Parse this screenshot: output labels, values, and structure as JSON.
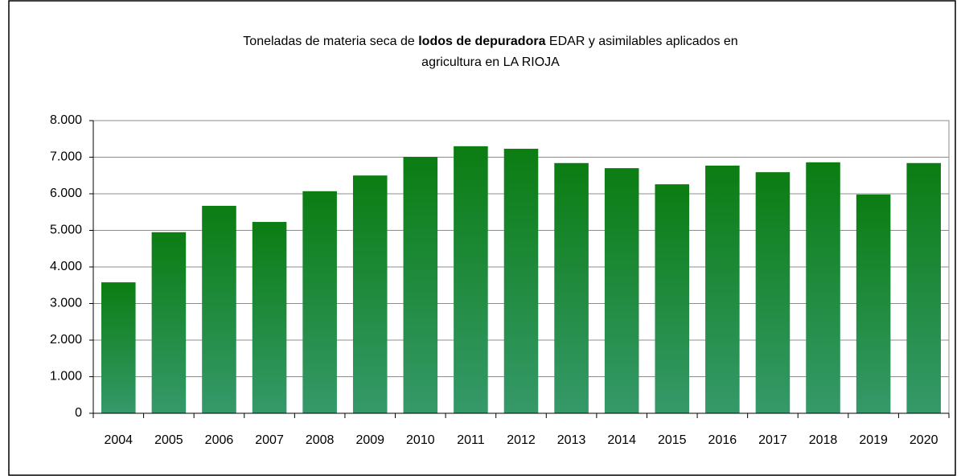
{
  "chart_data": {
    "type": "bar",
    "title_lines": [
      [
        {
          "text": "Toneladas de materia seca de ",
          "bold": false
        },
        {
          "text": "lodos de depuradora",
          "bold": true
        },
        {
          "text": " EDAR y asimilables aplicados en",
          "bold": false
        }
      ],
      [
        {
          "text": "agricultura en LA RIOJA",
          "bold": false
        }
      ]
    ],
    "categories": [
      "2004",
      "2005",
      "2006",
      "2007",
      "2008",
      "2009",
      "2010",
      "2011",
      "2012",
      "2013",
      "2014",
      "2015",
      "2016",
      "2017",
      "2018",
      "2019",
      "2020"
    ],
    "values": [
      3580,
      4950,
      5670,
      5230,
      6070,
      6500,
      7010,
      7300,
      7230,
      6840,
      6700,
      6260,
      6770,
      6590,
      6860,
      5980,
      6840
    ],
    "color": [
      "#0b7d12",
      "#35996a"
    ],
    "ylim": [
      0,
      8000
    ],
    "yticks": [
      0,
      {
        "value": 1000,
        "label": "1.000"
      },
      {
        "value": 2000,
        "label": "2.000"
      },
      {
        "value": 3000,
        "label": "3.000"
      },
      {
        "value": 4000,
        "label": "4.000"
      },
      {
        "value": 5000,
        "label": "5.000"
      },
      {
        "value": 6000,
        "label": "6.000"
      },
      {
        "value": 7000,
        "label": "7.000"
      },
      {
        "value": 8000,
        "label": "8.000"
      }
    ],
    "grid": true
  }
}
